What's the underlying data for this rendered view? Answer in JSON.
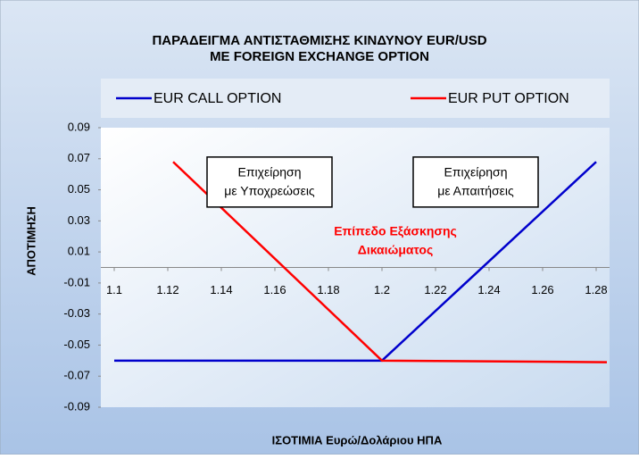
{
  "chart_data": {
    "type": "line",
    "title": [
      "ΠΑΡΑΔΕΙΓΜΑ ΑΝΤΙΣΤΑΘΜΙΣΗΣ ΚΙΝΔΥΝΟΥ EUR/USD",
      "ΜΕ FOREIGN EXCHANGE OPTION"
    ],
    "x_label": "ΙΣΟΤΙΜΙΑ  Ευρώ/Δολάριου ΗΠΑ",
    "y_label": "ΑΠΟΤΙΜΗΣΗ",
    "series": [
      {
        "name": "EUR CALL OPTION",
        "color": "#0000cc",
        "x": [
          1.1,
          1.2,
          1.28
        ],
        "values": [
          -0.06,
          -0.06,
          0.068
        ]
      },
      {
        "name": "EUR PUT OPTION",
        "color": "#ff0000",
        "x": [
          1.122,
          1.2,
          1.284
        ],
        "values": [
          0.068,
          -0.06,
          -0.061
        ]
      }
    ],
    "annotations": [
      {
        "lines": [
          "Επιχείρηση",
          "με Υποχρεώσεις"
        ],
        "x": 1.158,
        "y": 0.055,
        "color": "#000000",
        "box": true
      },
      {
        "lines": [
          "Επιχείρηση",
          "με Απαιτήσεις"
        ],
        "x": 1.235,
        "y": 0.055,
        "color": "#000000",
        "box": true
      },
      {
        "lines": [
          "Επίπεδο Εξάσκησης",
          "Δικαιώματος"
        ],
        "x": 1.205,
        "y": 0.017,
        "color": "#ff0000",
        "box": false
      }
    ],
    "xlim": [
      1.095,
      1.285
    ],
    "ylim": [
      -0.09,
      0.09
    ],
    "xticks": [
      1.1,
      1.12,
      1.14,
      1.16,
      1.18,
      1.2,
      1.22,
      1.24,
      1.26,
      1.28
    ],
    "yticks": [
      0.09,
      0.07,
      0.05,
      0.03,
      0.01,
      -0.01,
      -0.03,
      -0.05,
      -0.07,
      -0.09
    ],
    "legend": "top"
  }
}
